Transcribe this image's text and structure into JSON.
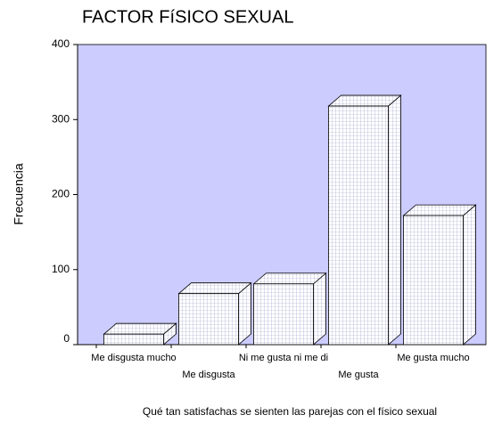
{
  "chart_data": {
    "type": "bar3d",
    "title": "FACTOR FíSICO SEXUAL",
    "y_label": "Frecuencia",
    "x_label": "Qué tan satisfachas se sienten las parejas con el físico sexual",
    "categories": [
      "Me disgusta mucho",
      "Me disgusta",
      "Ni me gusta ni me di",
      "Me gusta",
      "Me gusta mucho"
    ],
    "values": [
      14,
      68,
      81,
      318,
      172
    ],
    "ylim": [
      0,
      400
    ],
    "yticks": [
      0,
      100,
      200,
      300,
      400
    ],
    "color": "#ffffff",
    "background": "#ccccff"
  }
}
